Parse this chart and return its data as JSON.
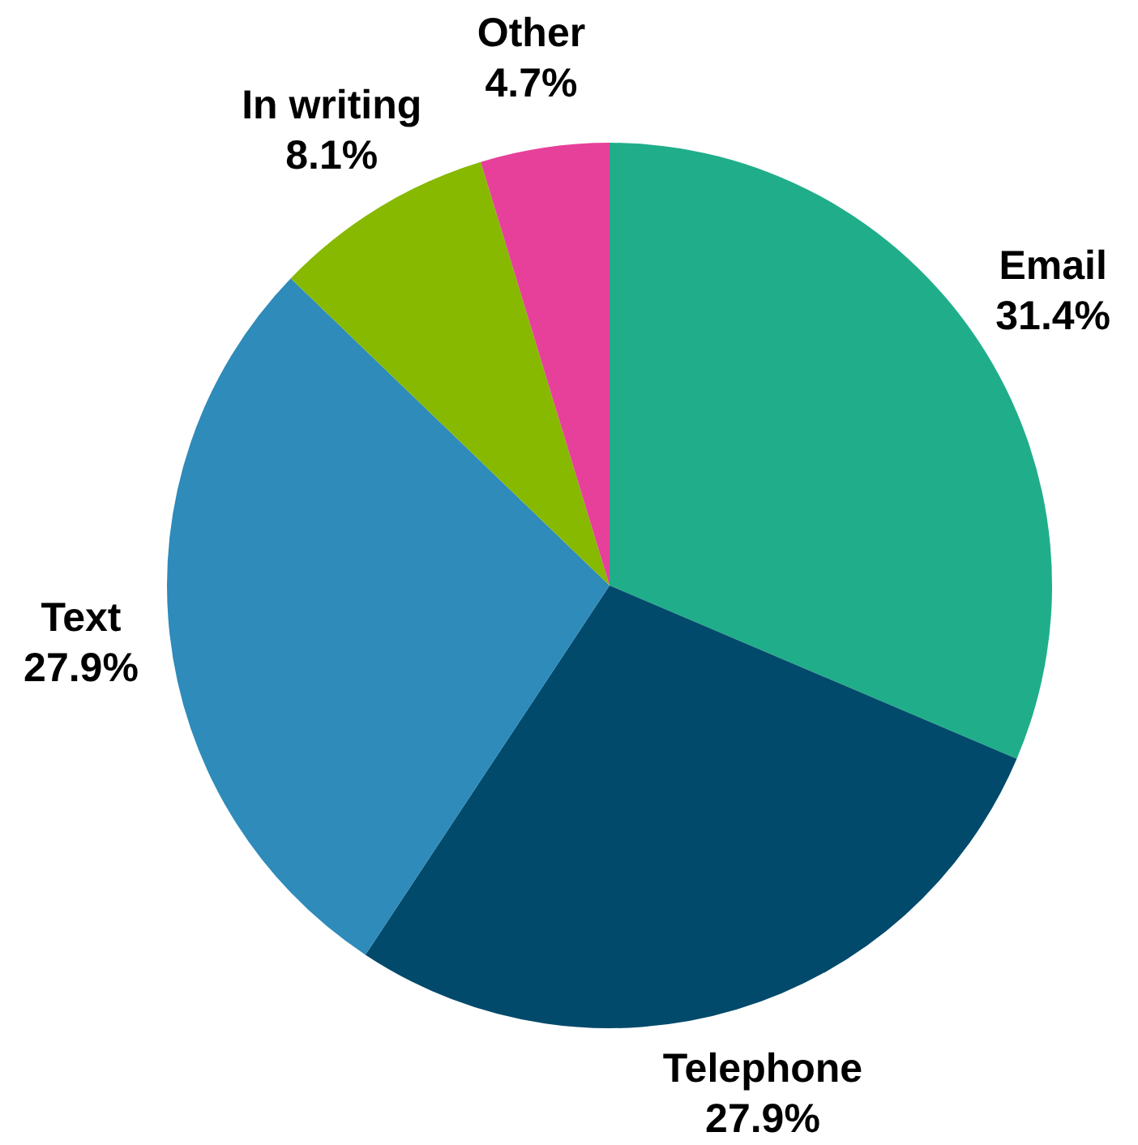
{
  "chart_data": {
    "type": "pie",
    "categories": [
      "Email",
      "Telephone",
      "Text",
      "In writing",
      "Other"
    ],
    "values": [
      31.4,
      27.9,
      27.9,
      8.1,
      4.7
    ],
    "value_labels": [
      "31.4%",
      "27.9%",
      "27.9%",
      "8.1%",
      "4.7%"
    ],
    "colors": [
      "#20ae8a",
      "#024a6b",
      "#2e8bba",
      "#86b900",
      "#e6409a"
    ],
    "legend": false
  }
}
